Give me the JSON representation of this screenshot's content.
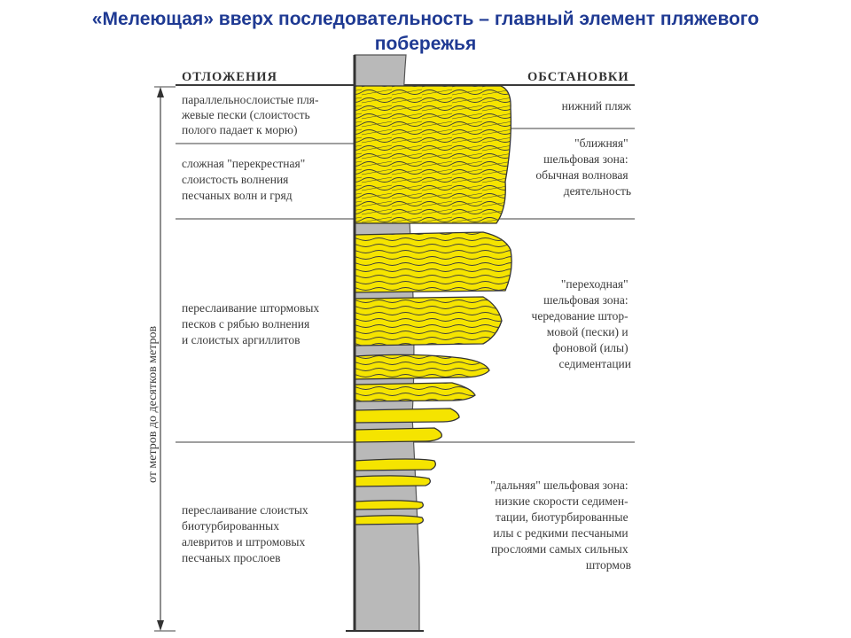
{
  "title": {
    "line1": "«Мелеющая» вверх последовательность – главный элемент пляжевого",
    "line2": "побережья"
  },
  "headers": {
    "deposits": "ОТЛОЖЕНИЯ",
    "environments": "ОБСТАНОВКИ"
  },
  "scale_label": "от метров до десятков метров",
  "deposits": [
    [
      "параллельнослоистые пля-",
      "жевые пески (слоистость",
      "полого падает к морю)"
    ],
    [
      "сложная \"перекрестная\"",
      "слоистость волнения",
      "песчаных волн и гряд"
    ],
    [
      "переслаивание штормовых",
      "песков с рябью волнения",
      "и слоистых аргиллитов"
    ],
    [
      "переслаивание слоистых",
      "биотурбированных",
      "алевритов и штромовых",
      "песчаных прослоев"
    ]
  ],
  "environments": [
    [
      "нижний пляж"
    ],
    [
      "\"ближняя\"",
      "шельфовая зона:",
      "обычная волновая",
      "деятельность"
    ],
    [
      "\"переходная\"",
      "шельфовая зона:",
      "чередование штор-",
      "мовой (пески) и",
      "фоновой (илы)",
      "седиментации"
    ],
    [
      "\"дальняя\" шельфовая зона:",
      "низкие скорости седимен-",
      "тации, биотурбированные",
      "илы с редкими песчаными",
      "прослоями самых сильных",
      "штормов"
    ]
  ],
  "colors": {
    "title": "#1f3a93",
    "sand": "#f5e400",
    "mud": "#b9b9b9",
    "line": "#555555"
  }
}
